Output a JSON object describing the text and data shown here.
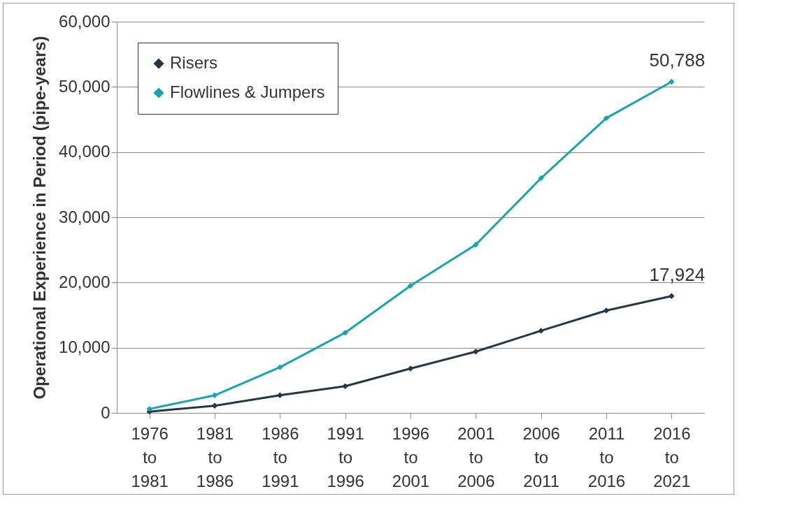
{
  "chart_data": {
    "type": "line",
    "ylabel": "Operational Experience in Period (pipe-years)",
    "categories": [
      "1976 to 1981",
      "1981 to 1986",
      "1986 to 1991",
      "1991 to 1996",
      "1996 to 2001",
      "2001 to 2006",
      "2006 to 2011",
      "2011 to 2016",
      "2016 to 2021"
    ],
    "series": [
      {
        "name": "Risers",
        "color": "#243746",
        "values": [
          200,
          1100,
          2700,
          4100,
          6800,
          9400,
          12600,
          15700,
          17924
        ],
        "value_labels": [
          null,
          null,
          null,
          null,
          null,
          null,
          null,
          null,
          "17,924"
        ]
      },
      {
        "name": "Flowlines & Jumpers",
        "color": "#19a3ad",
        "values": [
          600,
          2700,
          7000,
          12300,
          19500,
          25800,
          36000,
          45200,
          50788
        ],
        "value_labels": [
          null,
          null,
          null,
          null,
          null,
          null,
          null,
          null,
          "50,788"
        ]
      }
    ],
    "ylim": [
      0,
      60000
    ],
    "yticks": [
      0,
      {
        "value": 10000,
        "label": "10,000"
      },
      {
        "value": 20000,
        "label": "20,000"
      },
      {
        "value": 30000,
        "label": "30,000"
      },
      {
        "value": 40000,
        "label": "40,000"
      },
      {
        "value": 50000,
        "label": "50,000"
      },
      {
        "value": 60000,
        "label": "60,000"
      }
    ],
    "grid": "y",
    "legend": "top left",
    "marker": "diamond",
    "line_style": "solid"
  }
}
